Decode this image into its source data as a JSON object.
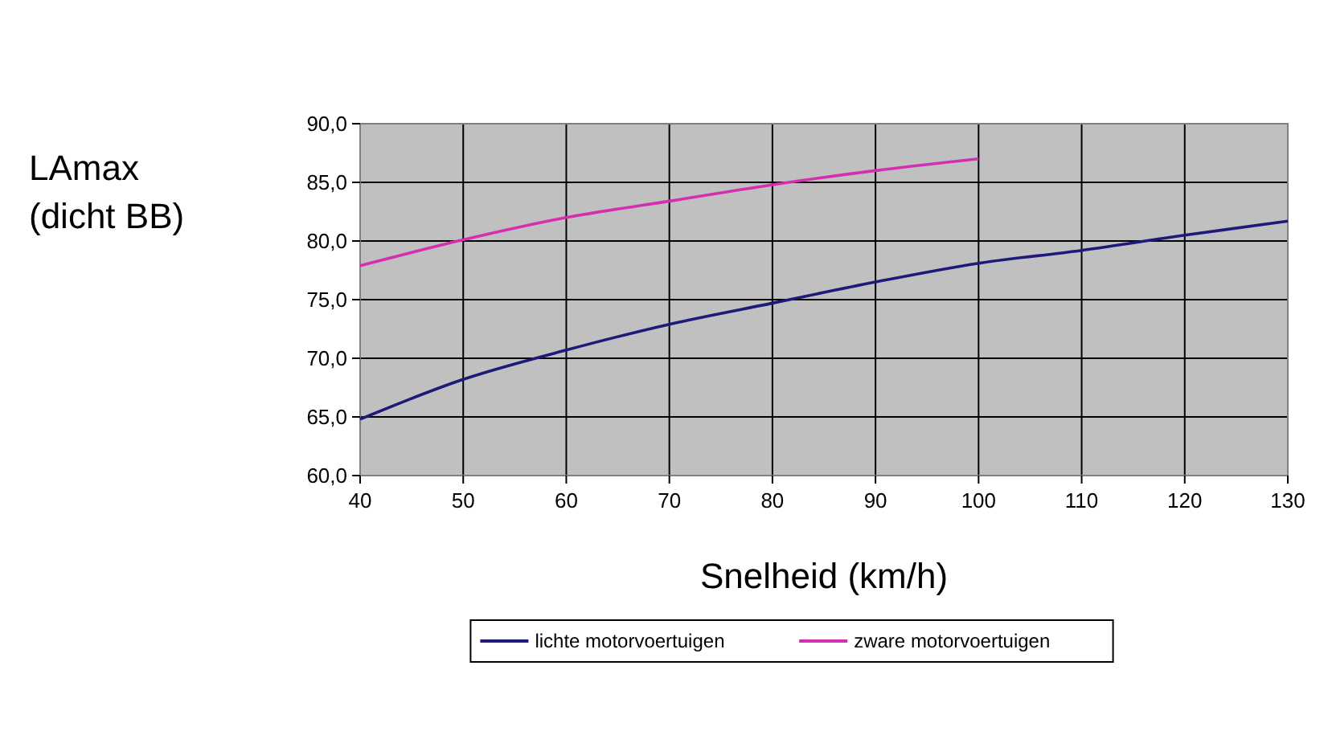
{
  "chart_data": {
    "type": "line",
    "ylabel": "LAmax\n(dicht BB)",
    "xlabel": "Snelheid (km/h)",
    "x": [
      40,
      50,
      60,
      70,
      80,
      90,
      100,
      110,
      120,
      130
    ],
    "series": [
      {
        "name": "lichte motorvoertuigen",
        "color": "#1f1a7a",
        "values": [
          64.8,
          68.2,
          70.7,
          72.9,
          74.7,
          76.5,
          78.1,
          79.2,
          80.5,
          81.7
        ]
      },
      {
        "name": "zware motorvoertuigen",
        "color": "#d42fb0",
        "values": [
          77.9,
          80.1,
          82.0,
          83.4,
          84.8,
          86.0,
          87.0,
          null,
          null,
          null
        ]
      }
    ],
    "xlim": [
      40,
      130
    ],
    "xticks": [
      40,
      50,
      60,
      70,
      80,
      90,
      100,
      110,
      120,
      130
    ],
    "ylim": [
      60,
      90
    ],
    "yticks": [
      {
        "value": 60,
        "label": "60,0"
      },
      {
        "value": 65,
        "label": "65,0"
      },
      {
        "value": 70,
        "label": "70,0"
      },
      {
        "value": 75,
        "label": "75,0"
      },
      {
        "value": 80,
        "label": "80,0"
      },
      {
        "value": 85,
        "label": "85,0"
      },
      {
        "value": 90,
        "label": "90,0"
      }
    ],
    "grid": true,
    "legend": "bottom",
    "marker": "none",
    "line_style": "solid"
  }
}
